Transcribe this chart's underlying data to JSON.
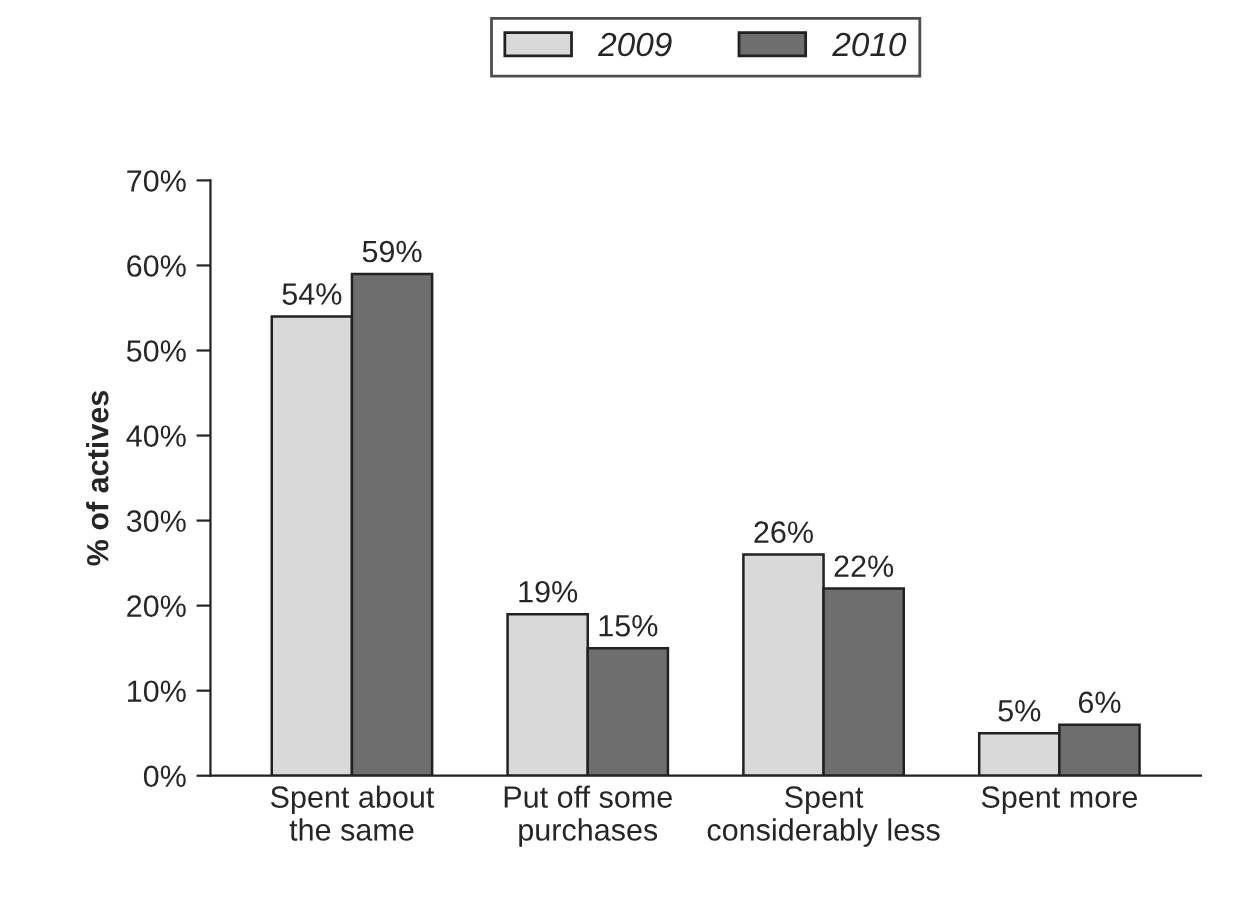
{
  "chart_data": {
    "type": "bar",
    "ylabel": "% of actives",
    "categories": [
      "Spent about\nthe same",
      "Put off some\npurchases",
      "Spent\nconsiderably less",
      "Spent more"
    ],
    "series": [
      {
        "name": "2009",
        "color": "#d9d9d9",
        "values": [
          54,
          19,
          26,
          5
        ],
        "value_labels": [
          "54%",
          "19%",
          "26%",
          "5%"
        ]
      },
      {
        "name": "2010",
        "color": "#6e6e6e",
        "values": [
          59,
          15,
          22,
          6
        ],
        "value_labels": [
          "59%",
          "15%",
          "22%",
          "6%"
        ]
      }
    ],
    "ylim": [
      0,
      70
    ],
    "yticks": [
      {
        "value": 0,
        "label": "0%"
      },
      {
        "value": 10,
        "label": "10%"
      },
      {
        "value": 20,
        "label": "20%"
      },
      {
        "value": 30,
        "label": "30%"
      },
      {
        "value": 40,
        "label": "40%"
      },
      {
        "value": 50,
        "label": "50%"
      },
      {
        "value": 60,
        "label": "60%"
      },
      {
        "value": 70,
        "label": "70%"
      }
    ],
    "grid": false,
    "legend": "top"
  }
}
